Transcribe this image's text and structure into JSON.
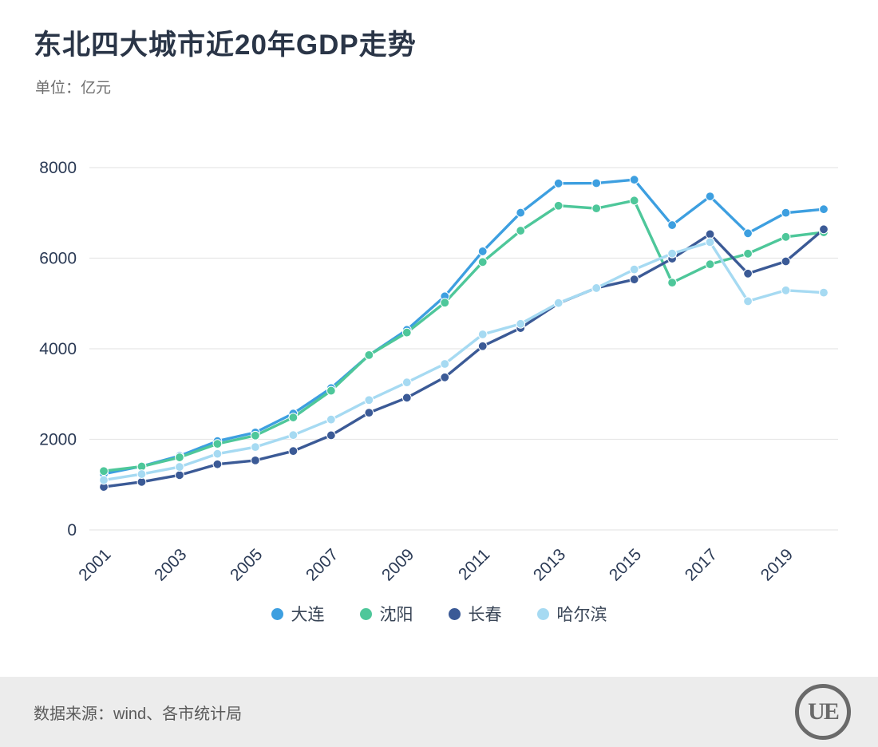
{
  "header": {
    "title": "东北四大城市近20年GDP走势",
    "unit_label": "单位：亿元"
  },
  "footer": {
    "source": "数据来源：wind、各市统计局",
    "logo_text": "UE"
  },
  "colors": {
    "axis_text": "#2b3a55",
    "gridline": "#e7e7e7",
    "dalian": "#3d9fe0",
    "shenyang": "#4ec79a",
    "changchun": "#3b5a96",
    "harbin": "#a6daf2"
  },
  "chart_data": {
    "type": "line",
    "title": "东北四大城市近20年GDP走势",
    "xlabel": "",
    "ylabel": "亿元",
    "x": [
      2001,
      2002,
      2003,
      2004,
      2005,
      2006,
      2007,
      2008,
      2009,
      2010,
      2011,
      2012,
      2013,
      2014,
      2015,
      2016,
      2017,
      2018,
      2019,
      2020
    ],
    "x_tick_labels": [
      2001,
      2003,
      2005,
      2007,
      2009,
      2011,
      2013,
      2015,
      2017,
      2019
    ],
    "ylim": [
      0,
      8000
    ],
    "yticks": [
      0,
      2000,
      4000,
      6000,
      8000
    ],
    "grid": true,
    "legend_position": "bottom",
    "series": [
      {
        "name": "大连",
        "color": "#3d9fe0",
        "values": [
          1236,
          1406,
          1633,
          1962,
          2152,
          2570,
          3131,
          3858,
          4418,
          5158,
          6151,
          7003,
          7651,
          7656,
          7732,
          6730,
          7364,
          6550,
          7002,
          7080
        ]
      },
      {
        "name": "沈阳",
        "color": "#4ec79a",
        "values": [
          1300,
          1400,
          1602,
          1901,
          2084,
          2483,
          3074,
          3861,
          4359,
          5018,
          5915,
          6607,
          7159,
          7099,
          7272,
          5460,
          5865,
          6100,
          6470,
          6572
        ]
      },
      {
        "name": "长春",
        "color": "#3b5a96",
        "values": [
          950,
          1060,
          1210,
          1450,
          1535,
          1741,
          2089,
          2588,
          2919,
          3369,
          4057,
          4457,
          5003,
          5342,
          5530,
          5990,
          6530,
          5660,
          5930,
          6638
        ]
      },
      {
        "name": "哈尔滨",
        "color": "#a6daf2",
        "values": [
          1100,
          1232,
          1391,
          1680,
          1830,
          2094,
          2437,
          2868,
          3258,
          3665,
          4317,
          4550,
          5010,
          5340,
          5751,
          6102,
          6355,
          5050,
          5290,
          5240
        ]
      }
    ]
  }
}
